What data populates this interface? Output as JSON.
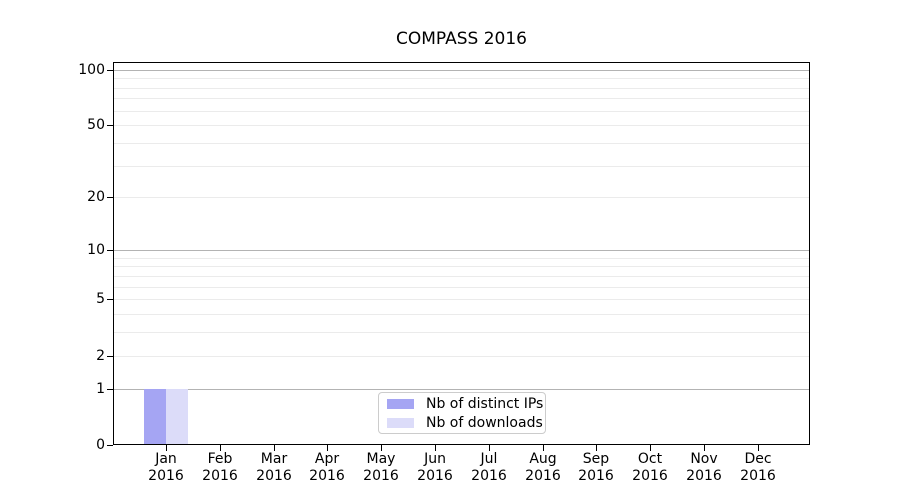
{
  "chart_data": {
    "type": "bar",
    "title": "COMPASS 2016",
    "categories": [
      "Jan",
      "Feb",
      "Mar",
      "Apr",
      "May",
      "Jun",
      "Jul",
      "Aug",
      "Sep",
      "Oct",
      "Nov",
      "Dec"
    ],
    "category_year": "2016",
    "series": [
      {
        "name": "Nb of distinct IPs",
        "color": "#a5a5f3",
        "values": [
          1,
          0,
          0,
          0,
          0,
          0,
          0,
          0,
          0,
          0,
          0,
          0
        ]
      },
      {
        "name": "Nb of downloads",
        "color": "#dcdcf9",
        "values": [
          1,
          0,
          0,
          0,
          0,
          0,
          0,
          0,
          0,
          0,
          0,
          0
        ]
      }
    ],
    "xlabel": "",
    "ylabel": "",
    "yscale": "log1p",
    "ylim": [
      0,
      110
    ],
    "yticks": [
      0,
      1,
      2,
      5,
      10,
      20,
      50,
      100
    ],
    "major_gridlines": [
      1,
      10,
      100
    ],
    "minor_gridlines": [
      2,
      3,
      4,
      5,
      6,
      7,
      8,
      9,
      20,
      30,
      40,
      50,
      60,
      70,
      80,
      90
    ],
    "grid": true,
    "legend_position": "bottom-center",
    "colors": {
      "major_grid": "#b3b3b3",
      "minor_grid": "#ebebeb",
      "axis": "#000000",
      "text": "#000000",
      "legend_border": "#cccccc"
    }
  }
}
